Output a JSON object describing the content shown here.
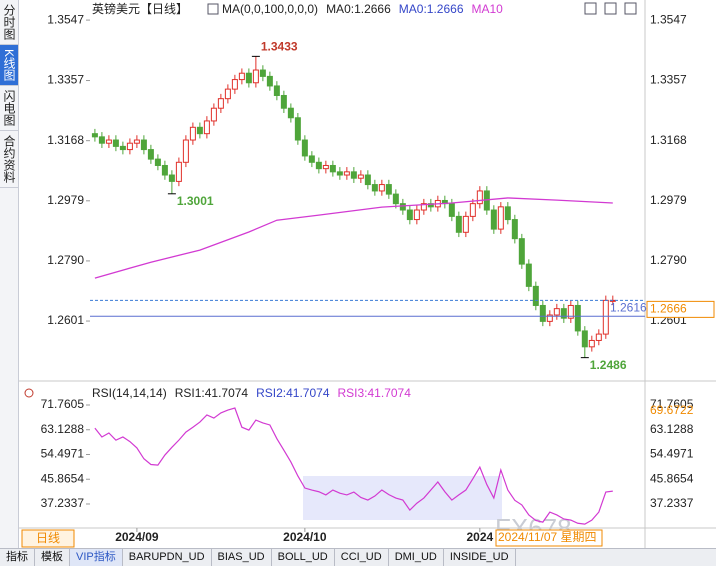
{
  "sidebar_tabs": [
    "分时图",
    "K线图",
    "闪电图",
    "合约资料"
  ],
  "toolbar": [
    "指标",
    "模板",
    "VIP指标",
    "BARUPDN_UD",
    "BIAS_UD",
    "BOLL_UD",
    "CCI_UD",
    "DMI_UD",
    "INSIDE_UD"
  ],
  "period_button": "日线",
  "crosshair_date": "2024/11/07 星期四",
  "watermark": "FX678",
  "chart_data": [
    {
      "type": "candlestick",
      "title": "英镑美元【日线】",
      "legend": [
        {
          "text": "MA(0,0,100,0,0,0)",
          "color": "#222222"
        },
        {
          "text": "MA0:1.2666",
          "color": "#222222"
        },
        {
          "text": "MA0:1.2666",
          "color": "#3446c8"
        }
      ],
      "up_color": "#e0302a",
      "down_color": "#4fa53a",
      "xlim": [
        -0.7,
        78.6
      ],
      "ylim": [
        1.2422,
        1.3585
      ],
      "yticks": [
        1.3547,
        1.3357,
        1.3168,
        1.2979,
        {
          "value": 1.279,
          "label": "1.2790"
        },
        1.2601
      ],
      "open": [
        1.319,
        1.318,
        1.316,
        1.317,
        1.315,
        1.314,
        1.316,
        1.317,
        1.314,
        1.311,
        1.309,
        1.306,
        1.304,
        1.31,
        1.317,
        1.321,
        1.319,
        1.323,
        1.327,
        1.33,
        1.333,
        1.336,
        1.338,
        1.335,
        1.339,
        1.337,
        1.334,
        1.331,
        1.327,
        1.324,
        1.317,
        1.312,
        1.31,
        1.308,
        1.309,
        1.307,
        1.306,
        1.307,
        1.305,
        1.306,
        1.303,
        1.301,
        1.303,
        1.3,
        1.297,
        1.295,
        1.292,
        1.295,
        1.297,
        1.296,
        1.298,
        1.297,
        1.293,
        1.288,
        1.293,
        1.297,
        1.301,
        1.295,
        1.289,
        1.296,
        1.292,
        1.286,
        1.278,
        1.271,
        1.265,
        1.26,
        1.262,
        1.264,
        1.261,
        1.265,
        1.257,
        1.252,
        1.254,
        1.256,
        1.2666
      ],
      "high": [
        1.3205,
        1.3195,
        1.3185,
        1.3185,
        1.3165,
        1.3175,
        1.3185,
        1.3185,
        1.3155,
        1.3125,
        1.3105,
        1.3075,
        1.3115,
        1.3185,
        1.3225,
        1.3225,
        1.3245,
        1.3285,
        1.3315,
        1.3345,
        1.3375,
        1.3395,
        1.3395,
        1.3433,
        1.3405,
        1.3385,
        1.3355,
        1.3325,
        1.3285,
        1.3255,
        1.3185,
        1.3135,
        1.3115,
        1.3105,
        1.3105,
        1.3085,
        1.3085,
        1.3085,
        1.3075,
        1.3075,
        1.3045,
        1.3045,
        1.3045,
        1.3015,
        1.2985,
        1.2965,
        1.2965,
        1.2985,
        1.2985,
        1.2995,
        1.2995,
        1.2985,
        1.2945,
        1.2945,
        1.2985,
        1.3025,
        1.3025,
        1.2965,
        1.2975,
        1.2975,
        1.2935,
        1.2875,
        1.2795,
        1.2725,
        1.2665,
        1.2635,
        1.2655,
        1.2655,
        1.2665,
        1.2665,
        1.2585,
        1.2555,
        1.2575,
        1.2681,
        1.2681
      ],
      "low": [
        1.3165,
        1.3145,
        1.3145,
        1.3135,
        1.3125,
        1.3125,
        1.3145,
        1.3125,
        1.3095,
        1.3075,
        1.3045,
        1.3001,
        1.3025,
        1.3085,
        1.3155,
        1.3175,
        1.3175,
        1.3215,
        1.3255,
        1.3285,
        1.3315,
        1.3345,
        1.3335,
        1.3335,
        1.3355,
        1.3325,
        1.3295,
        1.3255,
        1.3225,
        1.3155,
        1.3105,
        1.3085,
        1.3065,
        1.3065,
        1.3055,
        1.3045,
        1.3045,
        1.3035,
        1.3035,
        1.3015,
        1.2995,
        1.2995,
        1.2985,
        1.2955,
        1.2935,
        1.2905,
        1.2905,
        1.2935,
        1.2945,
        1.2945,
        1.2955,
        1.2915,
        1.2865,
        1.2865,
        1.2915,
        1.2955,
        1.2935,
        1.2875,
        1.2875,
        1.2905,
        1.2845,
        1.2765,
        1.2695,
        1.2635,
        1.2585,
        1.2585,
        1.2605,
        1.2595,
        1.2595,
        1.2555,
        1.2486,
        1.2505,
        1.2525,
        1.2545,
        1.2651
      ],
      "close": [
        1.318,
        1.316,
        1.317,
        1.315,
        1.314,
        1.316,
        1.317,
        1.314,
        1.311,
        1.309,
        1.306,
        1.304,
        1.31,
        1.317,
        1.321,
        1.319,
        1.323,
        1.327,
        1.33,
        1.333,
        1.336,
        1.338,
        1.335,
        1.339,
        1.337,
        1.334,
        1.331,
        1.327,
        1.324,
        1.317,
        1.312,
        1.31,
        1.308,
        1.309,
        1.307,
        1.306,
        1.307,
        1.305,
        1.306,
        1.303,
        1.301,
        1.303,
        1.3,
        1.297,
        1.295,
        1.292,
        1.295,
        1.297,
        1.296,
        1.298,
        1.297,
        1.293,
        1.288,
        1.293,
        1.297,
        1.301,
        1.295,
        1.289,
        1.296,
        1.292,
        1.286,
        1.278,
        1.271,
        1.265,
        1.26,
        1.262,
        1.264,
        1.261,
        1.265,
        1.257,
        1.252,
        1.254,
        1.256,
        1.2666,
        1.2666
      ],
      "series": [
        {
          "name": "MA10",
          "color": "#d23ad2",
          "x": [
            0,
            8,
            15,
            22,
            26,
            32,
            41,
            51,
            59,
            66,
            74
          ],
          "values": [
            1.2736,
            1.2786,
            1.2824,
            1.2881,
            1.2918,
            1.2934,
            1.2959,
            1.2972,
            1.2988,
            1.2981,
            1.2972
          ]
        }
      ],
      "annotations": [
        {
          "x": 23,
          "value": 1.3433,
          "color": "#c0392b"
        },
        {
          "x": 11,
          "value": 1.3001,
          "color": "#4fa53a"
        },
        {
          "x": 70,
          "value": 1.2486,
          "color": "#4fa53a"
        }
      ],
      "reference_line": {
        "value": 1.2616,
        "color": "#5a6fd0"
      },
      "last_price_color": "#f08a00"
    },
    {
      "type": "line",
      "legend": [
        {
          "text": "RSI(14,14,14)",
          "color": "#222222"
        },
        {
          "text": "RSI1:41.7074",
          "color": "#222222"
        },
        {
          "text": "RSI2:41.7074",
          "color": "#3446c8"
        },
        {
          "text": "RSI3:41.7074",
          "color": "#d23ad2"
        }
      ],
      "xlim": [
        -0.7,
        78.6
      ],
      "ylim": [
        29.9,
        74.2
      ],
      "yticks": [
        71.7605,
        63.1288,
        54.4971,
        45.8654,
        37.2337
      ],
      "xticks": [
        {
          "value": 6,
          "label": "2024/09"
        },
        {
          "value": 30,
          "label": "2024/10"
        },
        {
          "value": 55,
          "label": "2024"
        }
      ],
      "crosshair_value": 69.6722,
      "series": [
        {
          "name": "RSI3",
          "color": "#d23ad2",
          "values": [
            63.7,
            60.6,
            62,
            59.5,
            60.6,
            59,
            56.8,
            53,
            51,
            50.8,
            54.3,
            57,
            59.5,
            62.3,
            64,
            65.8,
            68.3,
            67.2,
            69,
            70,
            70.7,
            64,
            63,
            66.5,
            65.5,
            64.8,
            60,
            56,
            51.9,
            47,
            42.8,
            42.1,
            41.5,
            40.4,
            42.1,
            41,
            40.4,
            41.4,
            39.5,
            38.6,
            40,
            42.1,
            40.5,
            39.3,
            38.6,
            35.1,
            37.5,
            39.3,
            42.1,
            44.9,
            41.5,
            38.6,
            40.4,
            42.1,
            46,
            50.1,
            44,
            39.3,
            49.1,
            42.1,
            38.5,
            36.9,
            33.4,
            31.5,
            30.9,
            34.4,
            33.4,
            32,
            31.6,
            30.5,
            30.2,
            31.6,
            34.4,
            41.4,
            41.7074
          ]
        }
      ]
    }
  ]
}
